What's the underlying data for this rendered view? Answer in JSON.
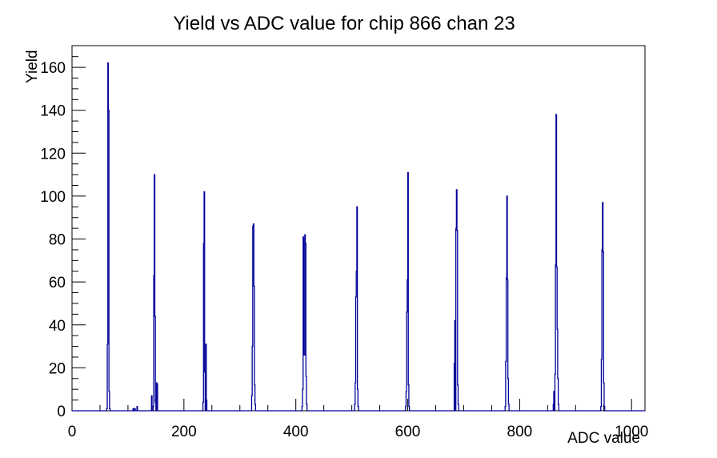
{
  "title": "Yield vs ADC value for chip 866 chan 23",
  "chart_data": {
    "type": "bar",
    "title": "Yield vs ADC value for chip 866 chan 23",
    "xlabel": "ADC value",
    "ylabel": "Yield",
    "xlim": [
      0,
      1024
    ],
    "ylim": [
      0,
      170.1
    ],
    "x_major_ticks": [
      0,
      200,
      400,
      600,
      800,
      1000
    ],
    "x_minor_step": 50,
    "y_major_ticks": [
      0,
      20,
      40,
      60,
      80,
      100,
      120,
      140,
      160
    ],
    "y_minor_step": 5,
    "grid": false,
    "legend": "none",
    "line_color": "#000099",
    "frame_color": "#000000",
    "background_color": "#ffffff",
    "peaks": [
      {
        "adc": 64,
        "yield": 162
      },
      {
        "adc": 147,
        "yield": 110
      },
      {
        "adc": 236,
        "yield": 102
      },
      {
        "adc": 324,
        "yield": 87
      },
      {
        "adc": 416,
        "yield": 82
      },
      {
        "adc": 509,
        "yield": 95
      },
      {
        "adc": 600,
        "yield": 111
      },
      {
        "adc": 687,
        "yield": 103
      },
      {
        "adc": 777,
        "yield": 100
      },
      {
        "adc": 865,
        "yield": 138
      },
      {
        "adc": 948,
        "yield": 97
      }
    ],
    "bins": [
      [
        62,
        1
      ],
      [
        63,
        31
      ],
      [
        64,
        162
      ],
      [
        65,
        140
      ],
      [
        66,
        9
      ],
      [
        67,
        1
      ],
      [
        109,
        1
      ],
      [
        112,
        1
      ],
      [
        116,
        2
      ],
      [
        142,
        7
      ],
      [
        145,
        2
      ],
      [
        146,
        63
      ],
      [
        147,
        110
      ],
      [
        148,
        44
      ],
      [
        149,
        4
      ],
      [
        151,
        13
      ],
      [
        152,
        12
      ],
      [
        234,
        4
      ],
      [
        235,
        78
      ],
      [
        236,
        102
      ],
      [
        237,
        18
      ],
      [
        239,
        31
      ],
      [
        240,
        5
      ],
      [
        321,
        7
      ],
      [
        322,
        30
      ],
      [
        323,
        86
      ],
      [
        324,
        87
      ],
      [
        325,
        58
      ],
      [
        326,
        12
      ],
      [
        327,
        3
      ],
      [
        411,
        2
      ],
      [
        412,
        10
      ],
      [
        413,
        81
      ],
      [
        414,
        26
      ],
      [
        415,
        26
      ],
      [
        416,
        82
      ],
      [
        417,
        78
      ],
      [
        418,
        16
      ],
      [
        419,
        3
      ],
      [
        505,
        3
      ],
      [
        506,
        13
      ],
      [
        507,
        53
      ],
      [
        508,
        65
      ],
      [
        509,
        95
      ],
      [
        510,
        10
      ],
      [
        511,
        2
      ],
      [
        596,
        2
      ],
      [
        597,
        9
      ],
      [
        598,
        46
      ],
      [
        599,
        61
      ],
      [
        600,
        111
      ],
      [
        601,
        12
      ],
      [
        602,
        2
      ],
      [
        683,
        22
      ],
      [
        684,
        42
      ],
      [
        686,
        85
      ],
      [
        687,
        103
      ],
      [
        688,
        84
      ],
      [
        689,
        12
      ],
      [
        690,
        3
      ],
      [
        774,
        2
      ],
      [
        775,
        23
      ],
      [
        776,
        62
      ],
      [
        777,
        100
      ],
      [
        778,
        61
      ],
      [
        779,
        15
      ],
      [
        780,
        3
      ],
      [
        860,
        3
      ],
      [
        861,
        9
      ],
      [
        863,
        17
      ],
      [
        864,
        68
      ],
      [
        865,
        138
      ],
      [
        866,
        67
      ],
      [
        867,
        38
      ],
      [
        868,
        15
      ],
      [
        869,
        3
      ],
      [
        945,
        2
      ],
      [
        946,
        24
      ],
      [
        947,
        75
      ],
      [
        948,
        97
      ],
      [
        949,
        74
      ],
      [
        950,
        13
      ],
      [
        951,
        2
      ]
    ]
  }
}
